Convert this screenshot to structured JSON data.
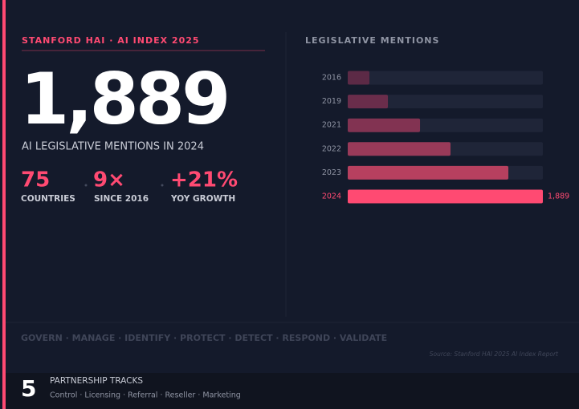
{
  "header": {
    "kicker": "STANFORD HAI · AI INDEX 2025"
  },
  "hero": {
    "value": "1,889",
    "caption": "AI LEGISLATIVE MENTIONS IN 2024"
  },
  "stats": [
    {
      "value": "75",
      "label": "COUNTRIES"
    },
    {
      "value": "9×",
      "label": "SINCE 2016"
    },
    {
      "value": "+21%",
      "label": "YOY GROWTH"
    }
  ],
  "chart_data": {
    "type": "hbar",
    "title": "LEGISLATIVE MENTIONS",
    "categories": [
      "2016",
      "2019",
      "2021",
      "2022",
      "2023",
      "2024"
    ],
    "values": [
      210,
      389,
      700,
      995,
      1555,
      1889
    ],
    "value_labels": [
      null,
      null,
      null,
      null,
      null,
      "1,889"
    ],
    "colors": [
      "#5c2a46",
      "#6a2d4b",
      "#823352",
      "#993a59",
      "#b7405f",
      "#ff4a72"
    ],
    "track_color": "#1f2538",
    "xlim": [
      0,
      1889
    ]
  },
  "functions": "GOVERN · MANAGE · IDENTIFY · PROTECT · DETECT · RESPOND · VALIDATE",
  "source": "Source: Stanford HAI 2025 AI Index Report",
  "footer": {
    "count": "5",
    "title": "PARTNERSHIP TRACKS",
    "tracks": "Control · Licensing · Referral · Reseller · Marketing"
  }
}
